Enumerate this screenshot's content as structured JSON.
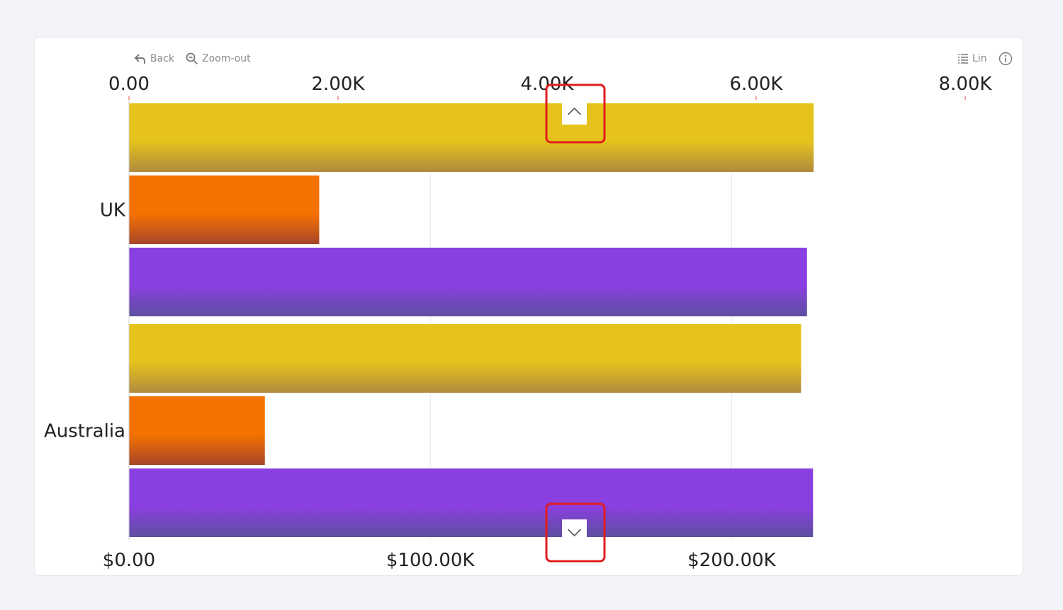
{
  "toolbar": {
    "back_label": "Back",
    "zoom_out_label": "Zoom-out",
    "scale_label": "Lin"
  },
  "chart_data": {
    "type": "bar",
    "orientation": "horizontal",
    "categories": [
      "UK",
      "Australia"
    ],
    "series": [
      {
        "color": "#e5c31c",
        "gradient_end": "#b08a3e",
        "axis": "top",
        "values": [
          6550,
          6430
        ]
      },
      {
        "color": "#f57200",
        "gradient_end": "#a8462a",
        "axis": "top",
        "values": [
          1820,
          1300
        ]
      },
      {
        "color": "#8a3fe0",
        "gradient_end": "#5e4fa0",
        "axis": "bottom",
        "values": [
          225000,
          227000
        ]
      }
    ],
    "top_axis": {
      "ticks": [
        0,
        2000,
        4000,
        6000,
        8000
      ],
      "tick_labels": [
        "0.00",
        "2.00K",
        "4.00K",
        "6.00K",
        "8.00K"
      ],
      "range": [
        0,
        8000
      ]
    },
    "bottom_axis": {
      "ticks": [
        0,
        100000,
        200000
      ],
      "tick_labels": [
        "$0.00",
        "$100.00K",
        "$200.00K"
      ],
      "range": [
        0,
        277500
      ]
    },
    "grid": true,
    "legend": "none"
  },
  "nav": {
    "scroll_up": "scroll-up",
    "scroll_down": "scroll-down",
    "highlight_color": "#e11d1d"
  }
}
